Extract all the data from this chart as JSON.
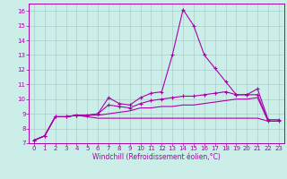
{
  "background_color": "#cceee8",
  "grid_color": "#aacccc",
  "line_color": "#aa00aa",
  "xlabel": "Windchill (Refroidissement éolien,°C)",
  "xlim": [
    -0.5,
    23.5
  ],
  "ylim": [
    7,
    16.5
  ],
  "xticks": [
    0,
    1,
    2,
    3,
    4,
    5,
    6,
    7,
    8,
    9,
    10,
    11,
    12,
    13,
    14,
    15,
    16,
    17,
    18,
    19,
    20,
    21,
    22,
    23
  ],
  "yticks": [
    7,
    8,
    9,
    10,
    11,
    12,
    13,
    14,
    15,
    16
  ],
  "series": [
    {
      "x": [
        0,
        1,
        2,
        3,
        4,
        5,
        6,
        7,
        8,
        9,
        10,
        11,
        12,
        13,
        14,
        15,
        16,
        17,
        18,
        19,
        20,
        21,
        22,
        23
      ],
      "y": [
        7.2,
        7.5,
        8.8,
        8.8,
        8.9,
        8.9,
        9.0,
        10.1,
        9.7,
        9.6,
        10.1,
        10.4,
        10.5,
        13.0,
        16.1,
        15.0,
        13.0,
        12.1,
        11.2,
        10.3,
        10.3,
        10.7,
        8.6,
        8.6
      ],
      "marker": "+",
      "linewidth": 0.8
    },
    {
      "x": [
        0,
        1,
        2,
        3,
        4,
        5,
        6,
        7,
        8,
        9,
        10,
        11,
        12,
        13,
        14,
        15,
        16,
        17,
        18,
        19,
        20,
        21,
        22,
        23
      ],
      "y": [
        7.2,
        7.5,
        8.8,
        8.8,
        8.9,
        8.9,
        9.0,
        9.6,
        9.5,
        9.4,
        9.7,
        9.9,
        10.0,
        10.1,
        10.2,
        10.2,
        10.3,
        10.4,
        10.5,
        10.3,
        10.3,
        10.3,
        8.5,
        8.5
      ],
      "marker": "+",
      "linewidth": 0.8
    },
    {
      "x": [
        0,
        1,
        2,
        3,
        4,
        5,
        6,
        7,
        8,
        9,
        10,
        11,
        12,
        13,
        14,
        15,
        16,
        17,
        18,
        19,
        20,
        21,
        22,
        23
      ],
      "y": [
        7.2,
        7.5,
        8.8,
        8.8,
        8.9,
        8.9,
        8.9,
        9.0,
        9.1,
        9.2,
        9.4,
        9.4,
        9.5,
        9.5,
        9.6,
        9.6,
        9.7,
        9.8,
        9.9,
        10.0,
        10.0,
        10.1,
        8.5,
        8.5
      ],
      "marker": null,
      "linewidth": 0.8
    },
    {
      "x": [
        0,
        1,
        2,
        3,
        4,
        5,
        6,
        7,
        8,
        9,
        10,
        11,
        12,
        13,
        14,
        15,
        16,
        17,
        18,
        19,
        20,
        21,
        22,
        23
      ],
      "y": [
        7.2,
        7.5,
        8.8,
        8.8,
        8.9,
        8.8,
        8.7,
        8.7,
        8.7,
        8.7,
        8.7,
        8.7,
        8.7,
        8.7,
        8.7,
        8.7,
        8.7,
        8.7,
        8.7,
        8.7,
        8.7,
        8.7,
        8.5,
        8.5
      ],
      "marker": null,
      "linewidth": 0.8
    }
  ],
  "tick_fontsize": 5,
  "xlabel_fontsize": 5.5,
  "tick_color": "#aa00aa",
  "spine_color": "#aa00aa"
}
